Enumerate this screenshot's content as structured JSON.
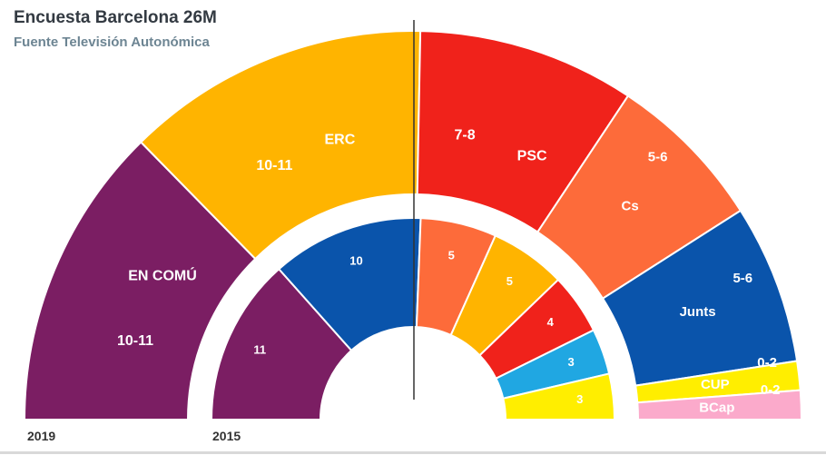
{
  "title": "Encuesta Barcelona 26M",
  "subtitle": "Fuente Televisión Autonómica",
  "chart_data": [
    {
      "type": "parliament-hemicycle",
      "year_label": "2019",
      "segments": [
        {
          "party": "EN COMÚ",
          "seats_label": "10-11",
          "seats_min": 10,
          "seats_max": 11,
          "color": "#7b1e63"
        },
        {
          "party": "ERC",
          "seats_label": "10-11",
          "seats_min": 10,
          "seats_max": 11,
          "color": "#ffb400"
        },
        {
          "party": "PSC",
          "seats_label": "7-8",
          "seats_min": 7,
          "seats_max": 8,
          "color": "#f0221b"
        },
        {
          "party": "Cs",
          "seats_label": "5-6",
          "seats_min": 5,
          "seats_max": 6,
          "color": "#fd6b3a"
        },
        {
          "party": "Junts",
          "seats_label": "5-6",
          "seats_min": 5,
          "seats_max": 6,
          "color": "#0a54ab"
        },
        {
          "party": "CUP",
          "seats_label": "0-2",
          "seats_min": 0,
          "seats_max": 2,
          "color": "#ffee00"
        },
        {
          "party": "BCap",
          "seats_label": "0-2",
          "seats_min": 0,
          "seats_max": 2,
          "color": "#fbaacb"
        }
      ]
    },
    {
      "type": "parliament-hemicycle",
      "year_label": "2015",
      "segments": [
        {
          "seats_label": "11",
          "seats": 11,
          "color": "#7b1e63"
        },
        {
          "seats_label": "10",
          "seats": 10,
          "color": "#0a54ab"
        },
        {
          "seats_label": "5",
          "seats": 5,
          "color": "#fd6b3a"
        },
        {
          "seats_label": "5",
          "seats": 5,
          "color": "#ffb400"
        },
        {
          "seats_label": "4",
          "seats": 4,
          "color": "#f0221b"
        },
        {
          "seats_label": "3",
          "seats": 3,
          "color": "#20a7e2"
        },
        {
          "seats_label": "3",
          "seats": 3,
          "color": "#ffee00"
        }
      ]
    }
  ]
}
